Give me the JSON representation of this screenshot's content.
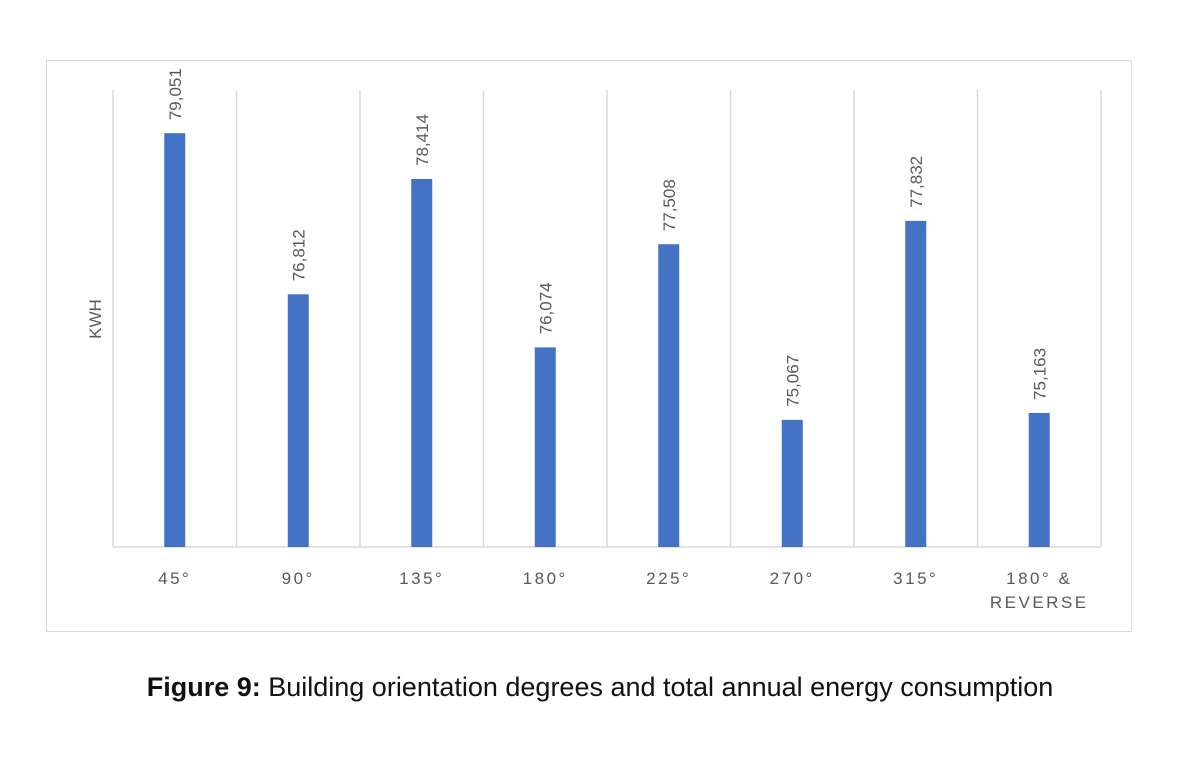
{
  "caption": {
    "label": "Figure 9:",
    "text": " Building orientation degrees and total annual energy consumption"
  },
  "chart_data": {
    "type": "bar",
    "title": "",
    "xlabel": "",
    "ylabel": "KWH",
    "categories": [
      [
        "45°"
      ],
      [
        "90°"
      ],
      [
        "135°"
      ],
      [
        "180°"
      ],
      [
        "225°"
      ],
      [
        "270°"
      ],
      [
        "315°"
      ],
      [
        "180° &",
        "REVERSE"
      ]
    ],
    "values": [
      79051,
      76812,
      78414,
      76074,
      77508,
      75067,
      77832,
      75163
    ],
    "data_labels": [
      "79,051",
      "76,812",
      "78,414",
      "76,074",
      "77,508",
      "75,067",
      "77,832",
      "75,163"
    ],
    "ylim": [
      73300,
      79651
    ],
    "grid": "vertical",
    "legend": "none",
    "bar_color": "#4472c4",
    "grid_color": "#d9d9d9",
    "text_color": "#595959"
  }
}
